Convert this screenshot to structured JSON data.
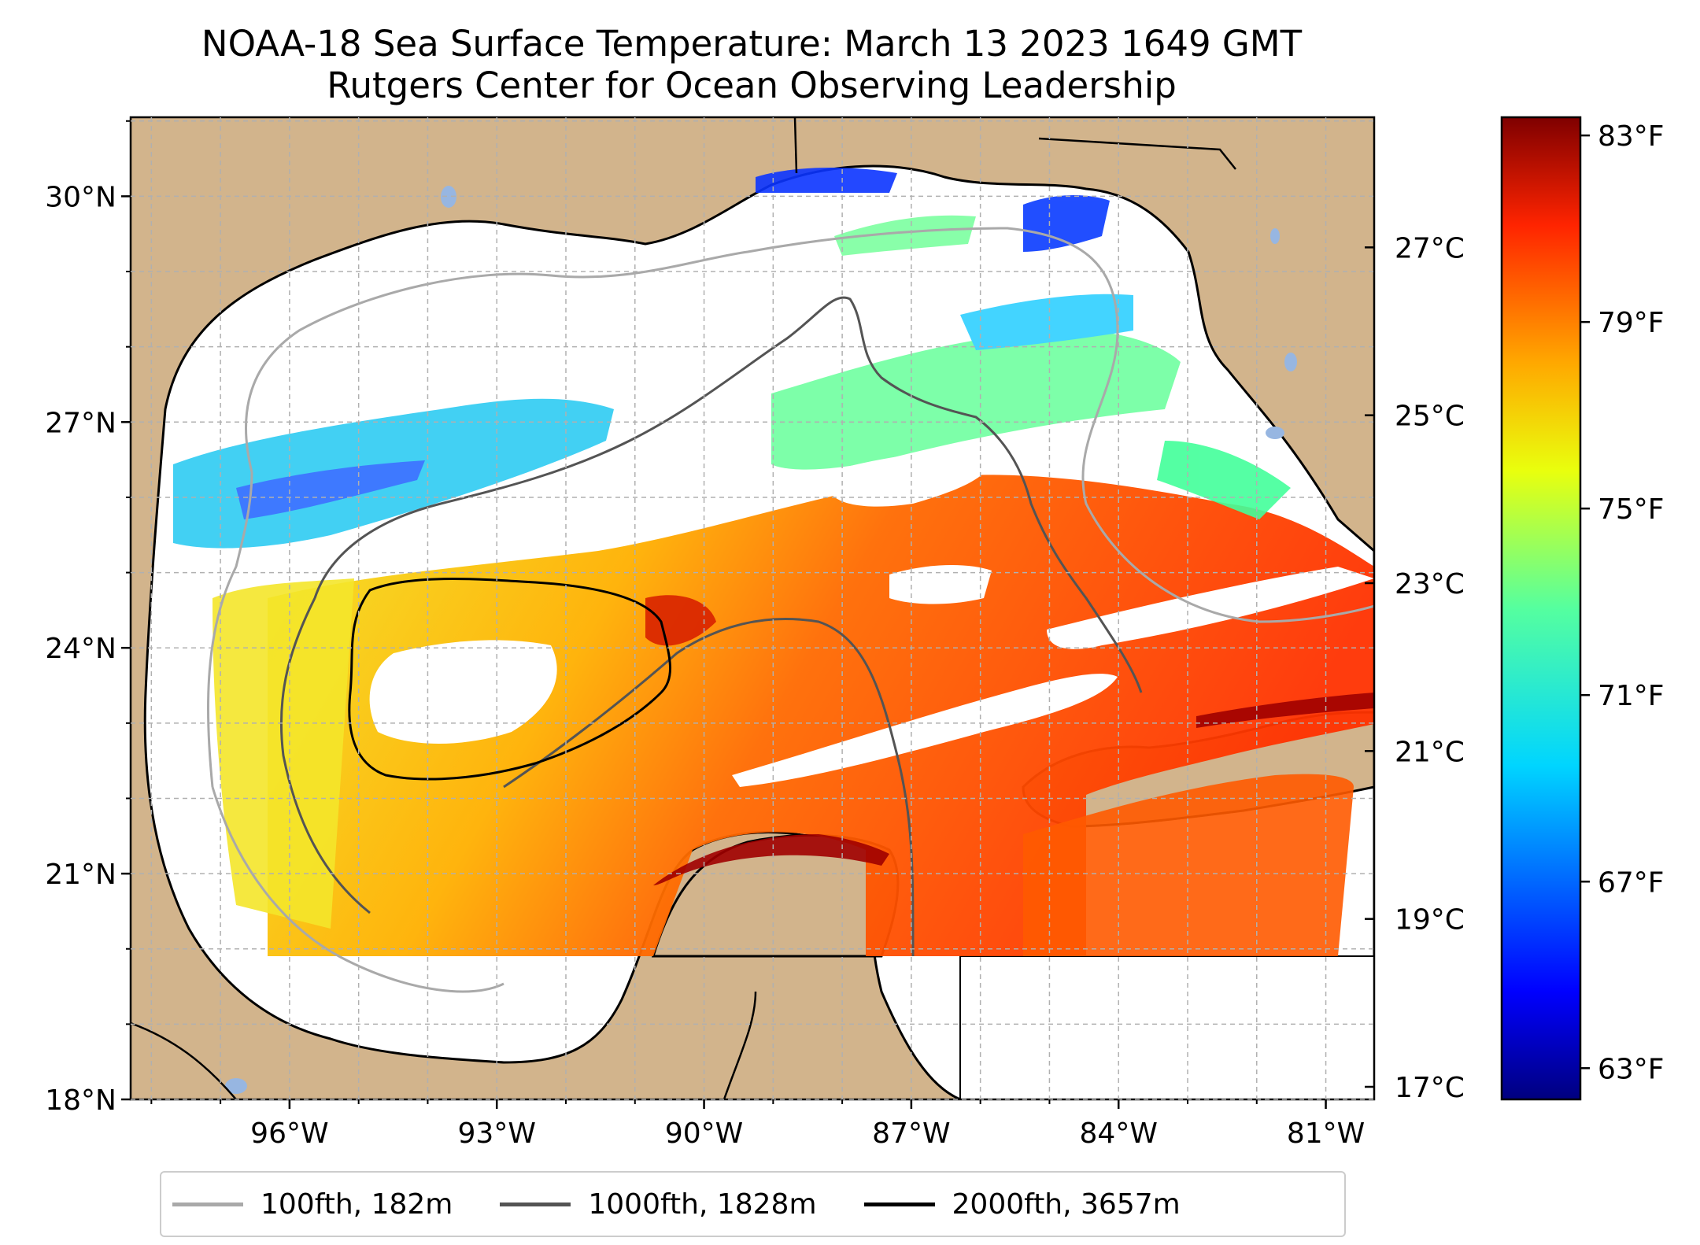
{
  "title": {
    "line1": "NOAA-18 Sea Surface Temperature: March 13 2023 1649 GMT",
    "line2": "Rutgers Center for Ocean Observing Leadership"
  },
  "map": {
    "lat_ticks": [
      {
        "value": 30,
        "label": "30°N"
      },
      {
        "value": 27,
        "label": "27°N"
      },
      {
        "value": 24,
        "label": "24°N"
      },
      {
        "value": 21,
        "label": "21°N"
      },
      {
        "value": 18,
        "label": "18°N"
      }
    ],
    "lon_ticks": [
      {
        "value": -96,
        "label": "96°W"
      },
      {
        "value": -93,
        "label": "93°W"
      },
      {
        "value": -90,
        "label": "90°W"
      },
      {
        "value": -87,
        "label": "87°W"
      },
      {
        "value": -84,
        "label": "84°W"
      },
      {
        "value": -81,
        "label": "81°W"
      }
    ],
    "extent": {
      "lon_min": -98.3,
      "lon_max": -80.3,
      "lat_min": 18.0,
      "lat_max": 31.05
    },
    "grid": true,
    "colors": {
      "land": "#d2b48c",
      "ocean_no_data": "#ffffff",
      "lakes": "#97b6e1",
      "grid": "#b0b0b0"
    }
  },
  "colorbar": {
    "colormap": "jet",
    "celsius_ticks": [
      {
        "value": 27,
        "label": "27°C"
      },
      {
        "value": 25,
        "label": "25°C"
      },
      {
        "value": 23,
        "label": "23°C"
      },
      {
        "value": 21,
        "label": "21°C"
      },
      {
        "value": 19,
        "label": "19°C"
      },
      {
        "value": 17,
        "label": "17°C"
      }
    ],
    "fahrenheit_ticks": [
      {
        "value": 83,
        "label": "83°F"
      },
      {
        "value": 79,
        "label": "79°F"
      },
      {
        "value": 75,
        "label": "75°F"
      },
      {
        "value": 71,
        "label": "71°F"
      },
      {
        "value": 67,
        "label": "67°F"
      },
      {
        "value": 63,
        "label": "63°F"
      }
    ],
    "range_c": [
      16.85,
      28.55
    ]
  },
  "legend": {
    "items": [
      {
        "label": "100fth, 182m",
        "color": "#a9a9a9"
      },
      {
        "label": "1000fth, 1828m",
        "color": "#545454"
      },
      {
        "label": "2000fth, 3657m",
        "color": "#000000"
      }
    ]
  }
}
